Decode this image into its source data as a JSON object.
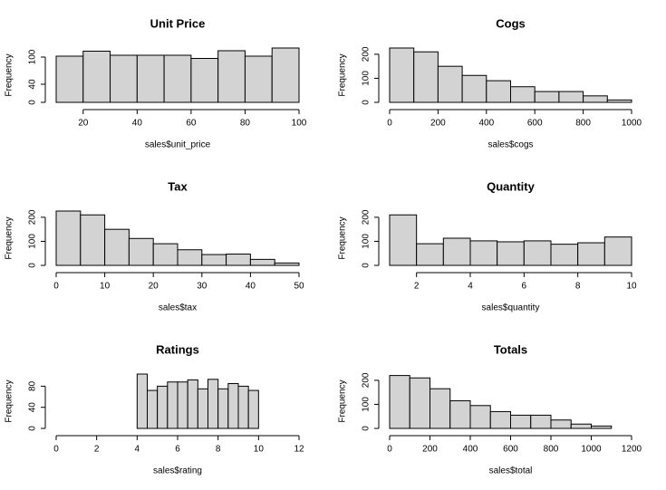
{
  "chart_data": [
    {
      "type": "histogram",
      "title": "Unit Price",
      "xlabel": "sales$unit_price",
      "ylabel": "Frequency",
      "color": "#d3d3d3",
      "bins": [
        10,
        20,
        30,
        40,
        50,
        60,
        70,
        80,
        90,
        100
      ],
      "values": [
        102,
        113,
        104,
        104,
        104,
        97,
        114,
        102,
        120
      ],
      "xlim": [
        10,
        100
      ],
      "ylim": [
        0,
        120
      ],
      "xticks": [
        20,
        40,
        60,
        80,
        100
      ],
      "yticks": [
        0,
        40,
        100
      ]
    },
    {
      "type": "histogram",
      "title": "Cogs",
      "xlabel": "sales$cogs",
      "ylabel": "Frequency",
      "color": "#d3d3d3",
      "bins": [
        0,
        100,
        200,
        300,
        400,
        500,
        600,
        700,
        800,
        900,
        1000
      ],
      "values": [
        226,
        210,
        150,
        112,
        90,
        65,
        45,
        45,
        27,
        10
      ],
      "xlim": [
        0,
        1000
      ],
      "ylim": [
        0,
        226
      ],
      "xticks": [
        0,
        200,
        400,
        600,
        800,
        1000
      ],
      "yticks": [
        0,
        100,
        200
      ]
    },
    {
      "type": "histogram",
      "title": "Tax",
      "xlabel": "sales$tax",
      "ylabel": "Frequency",
      "color": "#d3d3d3",
      "bins": [
        0,
        5,
        10,
        15,
        20,
        25,
        30,
        35,
        40,
        45,
        50
      ],
      "values": [
        226,
        210,
        150,
        112,
        90,
        65,
        45,
        47,
        25,
        10
      ],
      "xlim": [
        0,
        50
      ],
      "ylim": [
        0,
        226
      ],
      "xticks": [
        0,
        10,
        20,
        30,
        40,
        50
      ],
      "yticks": [
        0,
        100,
        200
      ]
    },
    {
      "type": "histogram",
      "title": "Quantity",
      "xlabel": "sales$quantity",
      "ylabel": "Frequency",
      "color": "#d3d3d3",
      "bins": [
        1,
        2,
        3,
        4,
        5,
        6,
        7,
        8,
        9,
        10
      ],
      "values": [
        210,
        90,
        113,
        102,
        98,
        102,
        88,
        94,
        118
      ],
      "xlim": [
        1,
        10
      ],
      "ylim": [
        0,
        226
      ],
      "xticks": [
        2,
        4,
        6,
        8,
        10
      ],
      "yticks": [
        0,
        100,
        200
      ]
    },
    {
      "type": "histogram",
      "title": "Ratings",
      "xlabel": "sales$rating",
      "ylabel": "Frequency",
      "color": "#d3d3d3",
      "bins": [
        4,
        4.5,
        5,
        5.5,
        6,
        6.5,
        7,
        7.5,
        8,
        8.5,
        9,
        9.5,
        10
      ],
      "values": [
        103,
        72,
        80,
        88,
        88,
        92,
        75,
        93,
        75,
        85,
        80,
        72
      ],
      "xlim": [
        0,
        12
      ],
      "ylim": [
        0,
        103
      ],
      "xticks": [
        0,
        2,
        4,
        6,
        8,
        10,
        12
      ],
      "yticks": [
        0,
        40,
        80
      ]
    },
    {
      "type": "histogram",
      "title": "Totals",
      "xlabel": "sales$total",
      "ylabel": "Frequency",
      "color": "#d3d3d3",
      "bins": [
        0,
        100,
        200,
        300,
        400,
        500,
        600,
        700,
        800,
        900,
        1000,
        1100
      ],
      "values": [
        220,
        210,
        165,
        115,
        95,
        70,
        55,
        55,
        35,
        18,
        10
      ],
      "xlim": [
        0,
        1200
      ],
      "ylim": [
        0,
        226
      ],
      "xticks": [
        0,
        200,
        400,
        600,
        800,
        1000,
        1200
      ],
      "yticks": [
        0,
        100,
        200
      ]
    }
  ]
}
